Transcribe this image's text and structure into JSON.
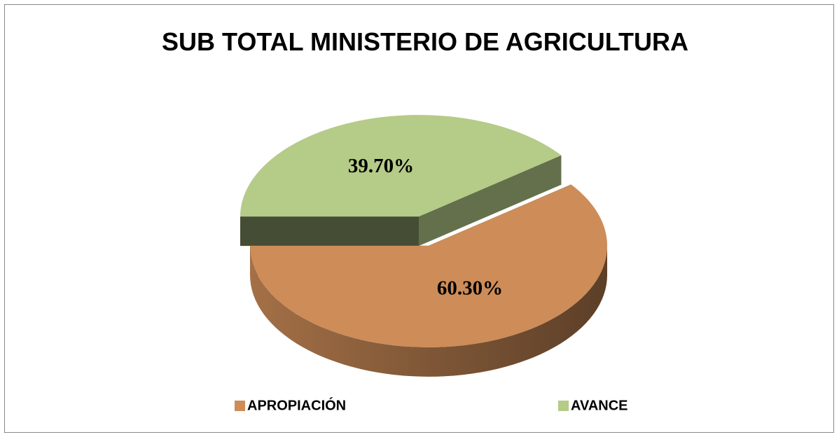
{
  "chart_data": {
    "type": "pie",
    "title": "SUB TOTAL MINISTERIO DE AGRICULTURA",
    "categories": [
      "APROPIACIÓN",
      "AVANCE"
    ],
    "values": [
      60.3,
      39.7
    ],
    "value_labels": [
      "60.30%",
      "39.70%"
    ],
    "colors": [
      "#CD8C58",
      "#B5CB88"
    ],
    "legend": "bottom"
  }
}
